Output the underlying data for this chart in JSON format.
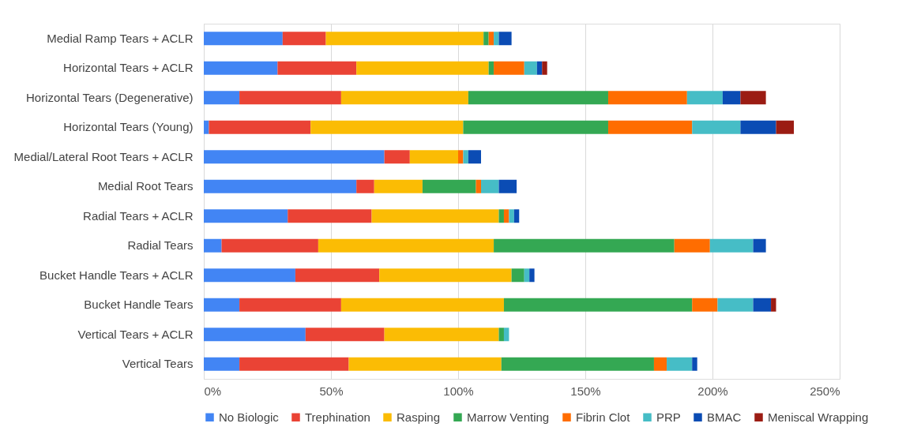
{
  "chart_data": {
    "type": "bar",
    "orientation": "horizontal",
    "stacked": true,
    "categories": [
      "Medial Ramp Tears + ACLR",
      "Horizontal Tears + ACLR",
      "Horizontal Tears (Degenerative)",
      "Horizontal Tears (Young)",
      "Medial/Lateral Root Tears + ACLR",
      "Medial Root Tears",
      "Radial Tears + ACLR",
      "Radial Tears",
      "Bucket Handle Tears + ACLR",
      "Bucket Handle Tears",
      "Vertical Tears + ACLR",
      "Vertical Tears"
    ],
    "series": [
      {
        "name": "No Biologic",
        "color": "#4285f4",
        "values": [
          31,
          29,
          14,
          2,
          71,
          60,
          33,
          7,
          36,
          14,
          40,
          14
        ]
      },
      {
        "name": "Trephination",
        "color": "#ea4335",
        "values": [
          17,
          31,
          40,
          40,
          10,
          7,
          33,
          38,
          33,
          40,
          31,
          43
        ]
      },
      {
        "name": "Rasping",
        "color": "#fbbc04",
        "values": [
          62,
          52,
          50,
          60,
          19,
          19,
          50,
          69,
          52,
          64,
          45,
          60
        ]
      },
      {
        "name": "Marrow Venting",
        "color": "#34a853",
        "values": [
          2,
          2,
          55,
          57,
          0,
          21,
          2,
          71,
          5,
          74,
          2,
          60
        ]
      },
      {
        "name": "Fibrin Clot",
        "color": "#ff6d01",
        "values": [
          2,
          12,
          31,
          33,
          2,
          2,
          2,
          14,
          0,
          10,
          0,
          5
        ]
      },
      {
        "name": "PRP",
        "color": "#46bdc6",
        "values": [
          2,
          5,
          14,
          19,
          2,
          7,
          2,
          17,
          2,
          14,
          2,
          10
        ]
      },
      {
        "name": "BMAC",
        "color": "#0b4cb4",
        "values": [
          5,
          2,
          7,
          14,
          5,
          7,
          2,
          5,
          2,
          7,
          0,
          2
        ]
      },
      {
        "name": "Meniscal Wrapping",
        "color": "#9b1c13",
        "values": [
          0,
          2,
          10,
          7,
          0,
          0,
          0,
          0,
          0,
          2,
          0,
          0
        ]
      }
    ],
    "xlim": [
      0,
      250
    ],
    "xticks": [
      {
        "value": 0,
        "label": "0%"
      },
      {
        "value": 50,
        "label": "50%"
      },
      {
        "value": 100,
        "label": "100%"
      },
      {
        "value": 150,
        "label": "150%"
      },
      {
        "value": 200,
        "label": "200%"
      },
      {
        "value": 250,
        "label": "250%"
      }
    ],
    "grid": "x",
    "legend": "bottom"
  }
}
